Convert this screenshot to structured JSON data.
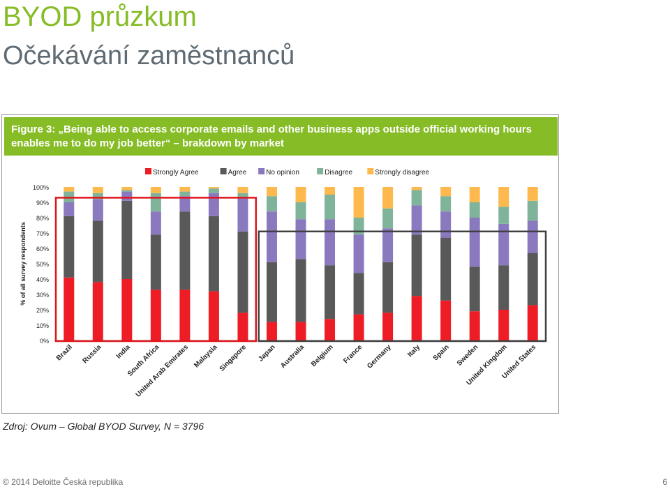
{
  "slide": {
    "title": "BYOD průzkum",
    "subtitle": "Očekávání zaměstnanců",
    "source": "Zdroj: Ovum – Global BYOD Survey, N = 3796",
    "footer": "© 2014 Deloitte Česká republika",
    "page_number": "6"
  },
  "figure": {
    "caption": "Figure 3: „Being able to access corporate emails and other business apps outside official working hours enables me to do my job better“ – brakdown by market"
  },
  "colors": {
    "brand_green": "#86bc25",
    "strongly_agree": "#ee1c25",
    "agree": "#595959",
    "no_opinion": "#8b79c0",
    "disagree": "#7fb49a",
    "strongly_disagree": "#fdb94e",
    "highlight_red": "#e0141c",
    "highlight_dark": "#404040"
  },
  "chart_data": {
    "type": "bar",
    "stacked": true,
    "ylabel": "% of all survey respondents",
    "ylim": [
      0,
      100
    ],
    "yticks": [
      "0%",
      "10%",
      "20%",
      "30%",
      "40%",
      "50%",
      "60%",
      "70%",
      "80%",
      "90%",
      "100%"
    ],
    "legend_position": "top",
    "categories": [
      "Brazil",
      "Russia",
      "India",
      "South Africa",
      "United Arab Emirates",
      "Malaysia",
      "Singapore",
      "Japan",
      "Australia",
      "Belgium",
      "France",
      "Germany",
      "Italy",
      "Spain",
      "Sweden",
      "United Kingdom",
      "United States"
    ],
    "series": [
      {
        "name": "Strongly Agree",
        "color": "#ee1c25",
        "values": [
          41,
          38,
          40,
          33,
          33,
          32,
          18,
          12,
          12,
          14,
          17,
          18,
          29,
          26,
          19,
          20,
          23
        ]
      },
      {
        "name": "Agree",
        "color": "#595959",
        "values": [
          40,
          40,
          51,
          36,
          51,
          49,
          53,
          39,
          41,
          35,
          27,
          33,
          40,
          41,
          29,
          29,
          34
        ]
      },
      {
        "name": "No opinion",
        "color": "#8b79c0",
        "values": [
          9,
          14,
          6,
          15,
          10,
          15,
          22,
          33,
          26,
          30,
          25,
          22,
          19,
          17,
          32,
          27,
          21
        ]
      },
      {
        "name": "Disagree",
        "color": "#7fb49a",
        "values": [
          7,
          4,
          1,
          12,
          3,
          3,
          3,
          10,
          11,
          16,
          11,
          13,
          10,
          10,
          10,
          11,
          13
        ]
      },
      {
        "name": "Strongly disagree",
        "color": "#fdb94e",
        "values": [
          3,
          4,
          2,
          4,
          3,
          1,
          4,
          6,
          10,
          5,
          20,
          14,
          2,
          6,
          10,
          13,
          9
        ]
      }
    ],
    "groups": [
      {
        "from": 0,
        "to": 6,
        "color": "#e0141c",
        "top": 93
      },
      {
        "from": 7,
        "to": 16,
        "color": "#404040",
        "top": 71
      }
    ]
  }
}
